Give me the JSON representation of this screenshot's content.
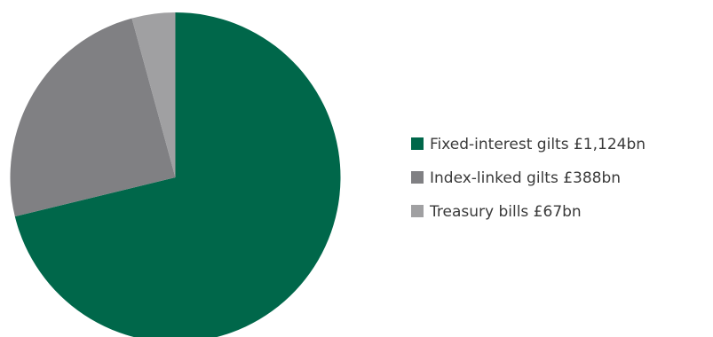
{
  "chart_data": {
    "type": "pie",
    "series": [
      {
        "values": [
          1124,
          388,
          67
        ],
        "labels": [
          "Fixed-interest gilts £1,124bn",
          "Index-linked gilts £388bn",
          "Treasury bills £67bn"
        ],
        "colors": [
          "#00674a",
          "#808083",
          "#a0a0a2"
        ]
      }
    ],
    "legend": [
      "Fixed-interest gilts £1,124bn",
      "Index-linked gilts £388bn",
      "Treasury bills £67bn"
    ],
    "legend_position": "right",
    "start_angle": "12 o'clock",
    "direction": "clockwise"
  }
}
